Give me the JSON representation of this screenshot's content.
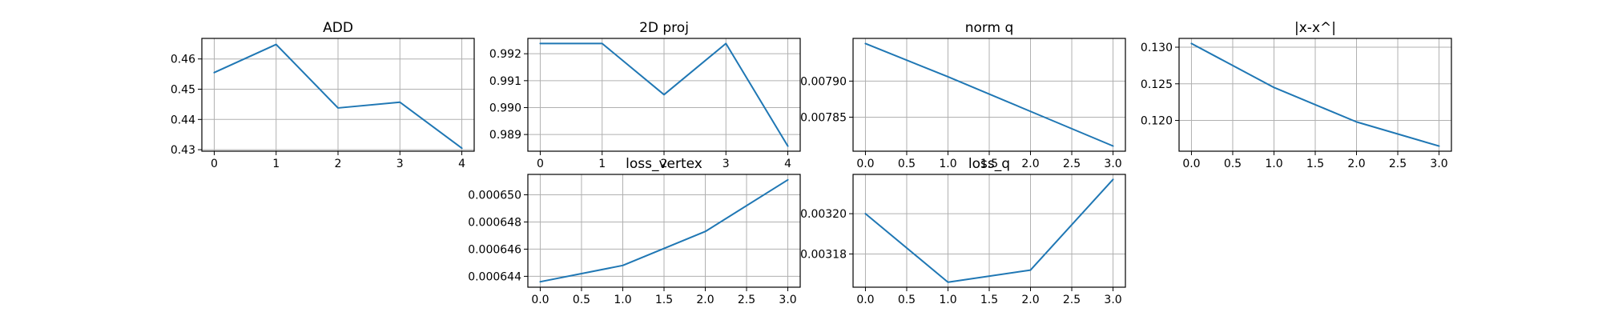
{
  "colors": {
    "series": "#1f77b4"
  },
  "chart_data": [
    {
      "type": "line",
      "title": "ADD",
      "x": [
        0,
        1,
        2,
        3,
        4
      ],
      "values": [
        0.4555,
        0.4648,
        0.4438,
        0.4457,
        0.4305
      ],
      "xlim": [
        -0.2,
        4.2
      ],
      "ylim": [
        0.4295,
        0.4668
      ],
      "xticks": [
        0,
        1,
        2,
        3,
        4
      ],
      "xtick_labels": [
        "0",
        "1",
        "2",
        "3",
        "4"
      ],
      "yticks": [
        0.43,
        0.44,
        0.45,
        0.46
      ],
      "ytick_labels": [
        "0.43",
        "0.44",
        "0.45",
        "0.46"
      ],
      "grid": true
    },
    {
      "type": "line",
      "title": "2D proj",
      "x": [
        0,
        1,
        2,
        3,
        4
      ],
      "values": [
        0.99238,
        0.99238,
        0.99048,
        0.99238,
        0.98857
      ],
      "xlim": [
        -0.2,
        4.2
      ],
      "ylim": [
        0.98838,
        0.99257
      ],
      "xticks": [
        0,
        1,
        2,
        3,
        4
      ],
      "xtick_labels": [
        "0",
        "1",
        "2",
        "3",
        "4"
      ],
      "yticks": [
        0.989,
        0.99,
        0.991,
        0.992
      ],
      "ytick_labels": [
        "0.989",
        "0.990",
        "0.991",
        "0.992"
      ],
      "grid": true
    },
    {
      "type": "line",
      "title": "norm q",
      "x": [
        0,
        1,
        2,
        3
      ],
      "values": [
        0.007952,
        0.007906,
        0.007858,
        0.00781
      ],
      "xlim": [
        -0.15,
        3.15
      ],
      "ylim": [
        0.0078028,
        0.0079592
      ],
      "xticks": [
        0,
        0.5,
        1,
        1.5,
        2,
        2.5,
        3
      ],
      "xtick_labels": [
        "0.0",
        "0.5",
        "1.0",
        "1.5",
        "2.0",
        "2.5",
        "3.0"
      ],
      "yticks": [
        0.00785,
        0.0079
      ],
      "ytick_labels": [
        "0.00785",
        "0.00790"
      ],
      "grid": true
    },
    {
      "type": "line",
      "title": "|x-x^|",
      "x": [
        0,
        1,
        2,
        3
      ],
      "values": [
        0.1305,
        0.1245,
        0.1198,
        0.1165
      ],
      "xlim": [
        -0.15,
        3.15
      ],
      "ylim": [
        0.1158,
        0.1312
      ],
      "xticks": [
        0,
        0.5,
        1,
        1.5,
        2,
        2.5,
        3
      ],
      "xtick_labels": [
        "0.0",
        "0.5",
        "1.0",
        "1.5",
        "2.0",
        "2.5",
        "3.0"
      ],
      "yticks": [
        0.12,
        0.125,
        0.13
      ],
      "ytick_labels": [
        "0.120",
        "0.125",
        "0.130"
      ],
      "grid": true
    },
    {
      "type": "line",
      "title": "loss_vertex",
      "x": [
        0,
        1,
        2,
        3
      ],
      "values": [
        0.0006436,
        0.0006448,
        0.0006473,
        0.0006511
      ],
      "xlim": [
        -0.15,
        3.15
      ],
      "ylim": [
        0.0006432,
        0.0006515
      ],
      "xticks": [
        0,
        0.5,
        1,
        1.5,
        2,
        2.5,
        3
      ],
      "xtick_labels": [
        "0.0",
        "0.5",
        "1.0",
        "1.5",
        "2.0",
        "2.5",
        "3.0"
      ],
      "yticks": [
        0.000644,
        0.000646,
        0.000648,
        0.00065
      ],
      "ytick_labels": [
        "0.000644",
        "0.000646",
        "0.000648",
        "0.000650"
      ],
      "grid": true
    },
    {
      "type": "line",
      "title": "loss_q",
      "x": [
        0,
        1,
        2,
        3
      ],
      "values": [
        0.0032,
        0.003166,
        0.003172,
        0.003217
      ],
      "xlim": [
        -0.15,
        3.15
      ],
      "ylim": [
        0.0031635,
        0.0032195
      ],
      "xticks": [
        0,
        0.5,
        1,
        1.5,
        2,
        2.5,
        3
      ],
      "xtick_labels": [
        "0.0",
        "0.5",
        "1.0",
        "1.5",
        "2.0",
        "2.5",
        "3.0"
      ],
      "yticks": [
        0.00318,
        0.0032
      ],
      "ytick_labels": [
        "0.00318",
        "0.00320"
      ],
      "grid": true
    }
  ]
}
